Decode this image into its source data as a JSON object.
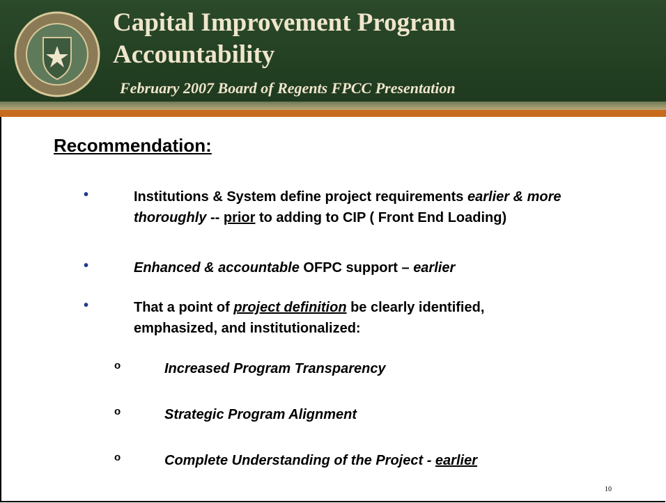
{
  "header": {
    "title": "Capital Improvement Program Accountability",
    "subtitle": "February 2007 Board of Regents FPCC Presentation"
  },
  "heading": "Recommendation:",
  "bullet": "•",
  "sub_bullet": "o",
  "bullets": [
    {
      "lines": [
        [
          {
            "text": "Institutions & System define project requirements "
          },
          {
            "text": "earlier & more",
            "italic": true
          }
        ],
        [
          {
            "text": "thoroughly",
            "italic": true
          },
          {
            "text": " -- "
          },
          {
            "text": "prior",
            "underline": true
          },
          {
            "text": " to adding to CIP ( Front End Loading)"
          }
        ]
      ]
    },
    {
      "lines": [
        [
          {
            "text": "Enhanced & accountable",
            "italic": true
          },
          {
            "text": " OFPC support – "
          },
          {
            "text": "earlier",
            "italic": true
          }
        ]
      ]
    },
    {
      "lines": [
        [
          {
            "text": "That a point of "
          },
          {
            "text": "project definition",
            "italic": true,
            "underline": true
          },
          {
            "text": " be clearly identified,"
          }
        ],
        [
          {
            "text": "emphasized, and institutionalized:"
          }
        ]
      ]
    }
  ],
  "sub_bullets": [
    [
      {
        "text": "Increased Program Transparency"
      }
    ],
    [
      {
        "text": "Strategic Program Alignment"
      }
    ],
    [
      {
        "text": "Complete Understanding of the Project - "
      },
      {
        "text": "earlier",
        "underline": true
      }
    ]
  ],
  "page_number": "10"
}
